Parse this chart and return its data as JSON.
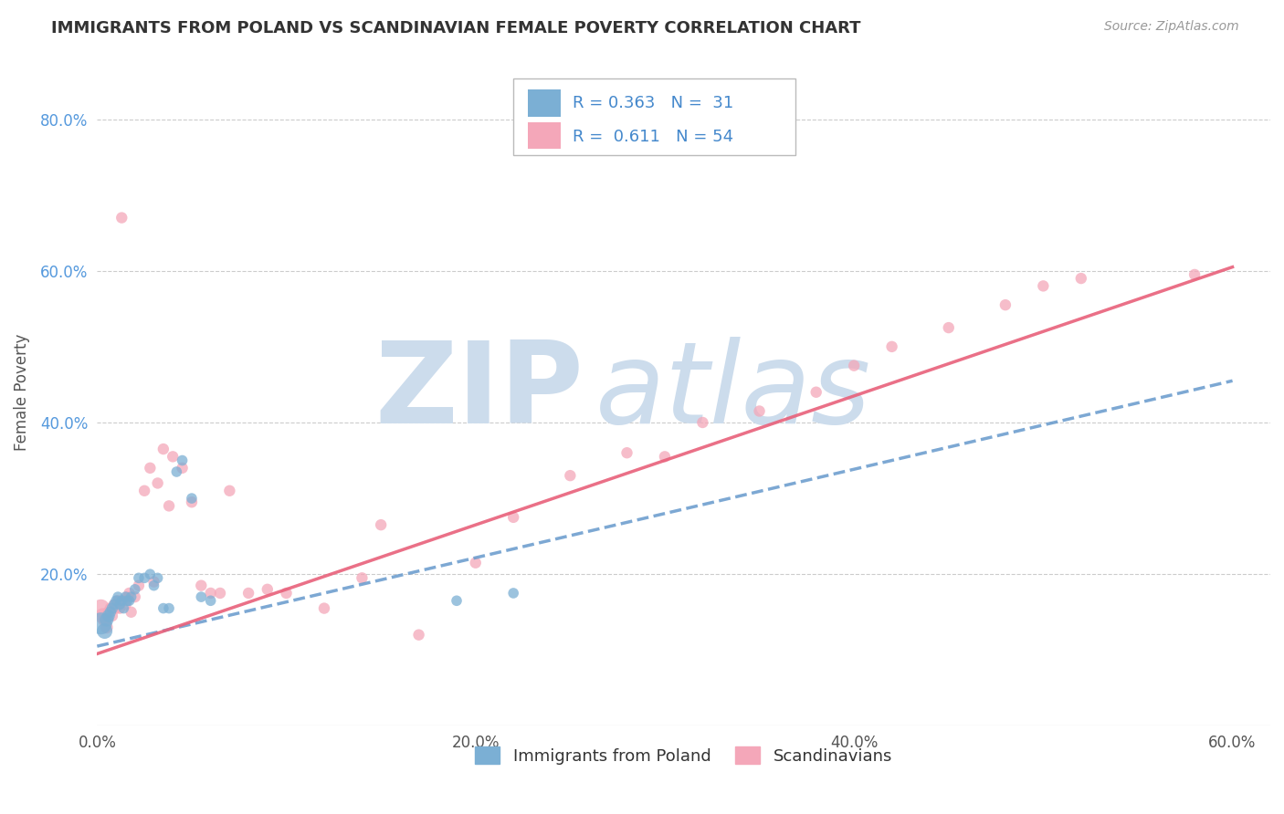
{
  "title": "IMMIGRANTS FROM POLAND VS SCANDINAVIAN FEMALE POVERTY CORRELATION CHART",
  "source": "Source: ZipAtlas.com",
  "ylabel": "Female Poverty",
  "xlim": [
    0.0,
    0.62
  ],
  "ylim": [
    0.0,
    0.88
  ],
  "xtick_labels": [
    "0.0%",
    "20.0%",
    "40.0%",
    "60.0%"
  ],
  "xtick_vals": [
    0.0,
    0.2,
    0.4,
    0.6
  ],
  "ytick_labels": [
    "20.0%",
    "40.0%",
    "60.0%",
    "80.0%"
  ],
  "ytick_vals": [
    0.2,
    0.4,
    0.6,
    0.8
  ],
  "legend_label1": "Immigrants from Poland",
  "legend_label2": "Scandinavians",
  "r1": 0.363,
  "n1": 31,
  "r2": 0.611,
  "n2": 54,
  "color1": "#7BAFD4",
  "color2": "#F4A7B9",
  "trendline1_color": "#6699CC",
  "trendline2_color": "#E8607A",
  "watermark_zip": "ZIP",
  "watermark_atlas": "atlas",
  "watermark_color_zip": "#c8d8e8",
  "watermark_color_atlas": "#c8d8e8",
  "scatter1_x": [
    0.002,
    0.004,
    0.005,
    0.006,
    0.007,
    0.008,
    0.009,
    0.01,
    0.011,
    0.012,
    0.013,
    0.014,
    0.015,
    0.016,
    0.017,
    0.018,
    0.02,
    0.022,
    0.025,
    0.028,
    0.03,
    0.032,
    0.035,
    0.038,
    0.042,
    0.045,
    0.05,
    0.055,
    0.06,
    0.19,
    0.22
  ],
  "scatter1_y": [
    0.135,
    0.125,
    0.14,
    0.145,
    0.15,
    0.155,
    0.16,
    0.165,
    0.17,
    0.16,
    0.165,
    0.155,
    0.17,
    0.165,
    0.165,
    0.17,
    0.18,
    0.195,
    0.195,
    0.2,
    0.185,
    0.195,
    0.155,
    0.155,
    0.335,
    0.35,
    0.3,
    0.17,
    0.165,
    0.165,
    0.175
  ],
  "scatter1_sizes": [
    300,
    150,
    120,
    100,
    80,
    80,
    70,
    70,
    70,
    70,
    70,
    70,
    70,
    70,
    70,
    70,
    70,
    70,
    70,
    70,
    70,
    70,
    70,
    70,
    70,
    70,
    70,
    70,
    70,
    70,
    70
  ],
  "scatter2_x": [
    0.002,
    0.003,
    0.004,
    0.005,
    0.006,
    0.007,
    0.008,
    0.009,
    0.01,
    0.011,
    0.012,
    0.013,
    0.014,
    0.015,
    0.016,
    0.017,
    0.018,
    0.02,
    0.022,
    0.025,
    0.028,
    0.03,
    0.032,
    0.035,
    0.038,
    0.04,
    0.045,
    0.05,
    0.055,
    0.06,
    0.065,
    0.07,
    0.08,
    0.09,
    0.1,
    0.12,
    0.14,
    0.15,
    0.17,
    0.2,
    0.22,
    0.25,
    0.28,
    0.3,
    0.32,
    0.35,
    0.38,
    0.4,
    0.42,
    0.45,
    0.48,
    0.5,
    0.52,
    0.58
  ],
  "scatter2_y": [
    0.155,
    0.145,
    0.14,
    0.13,
    0.15,
    0.155,
    0.145,
    0.16,
    0.155,
    0.165,
    0.155,
    0.67,
    0.165,
    0.16,
    0.17,
    0.175,
    0.15,
    0.17,
    0.185,
    0.31,
    0.34,
    0.19,
    0.32,
    0.365,
    0.29,
    0.355,
    0.34,
    0.295,
    0.185,
    0.175,
    0.175,
    0.31,
    0.175,
    0.18,
    0.175,
    0.155,
    0.195,
    0.265,
    0.12,
    0.215,
    0.275,
    0.33,
    0.36,
    0.355,
    0.4,
    0.415,
    0.44,
    0.475,
    0.5,
    0.525,
    0.555,
    0.58,
    0.59,
    0.595
  ],
  "scatter2_sizes": [
    200,
    150,
    120,
    100,
    80,
    80,
    80,
    80,
    80,
    80,
    80,
    80,
    80,
    80,
    80,
    80,
    80,
    80,
    80,
    80,
    80,
    80,
    80,
    80,
    80,
    80,
    80,
    80,
    80,
    80,
    80,
    80,
    80,
    80,
    80,
    80,
    80,
    80,
    80,
    80,
    80,
    80,
    80,
    80,
    80,
    80,
    80,
    80,
    80,
    80,
    80,
    80,
    80,
    80
  ],
  "trendline1_x": [
    0.0,
    0.6
  ],
  "trendline1_y": [
    0.105,
    0.455
  ],
  "trendline2_x": [
    0.0,
    0.6
  ],
  "trendline2_y": [
    0.095,
    0.605
  ]
}
